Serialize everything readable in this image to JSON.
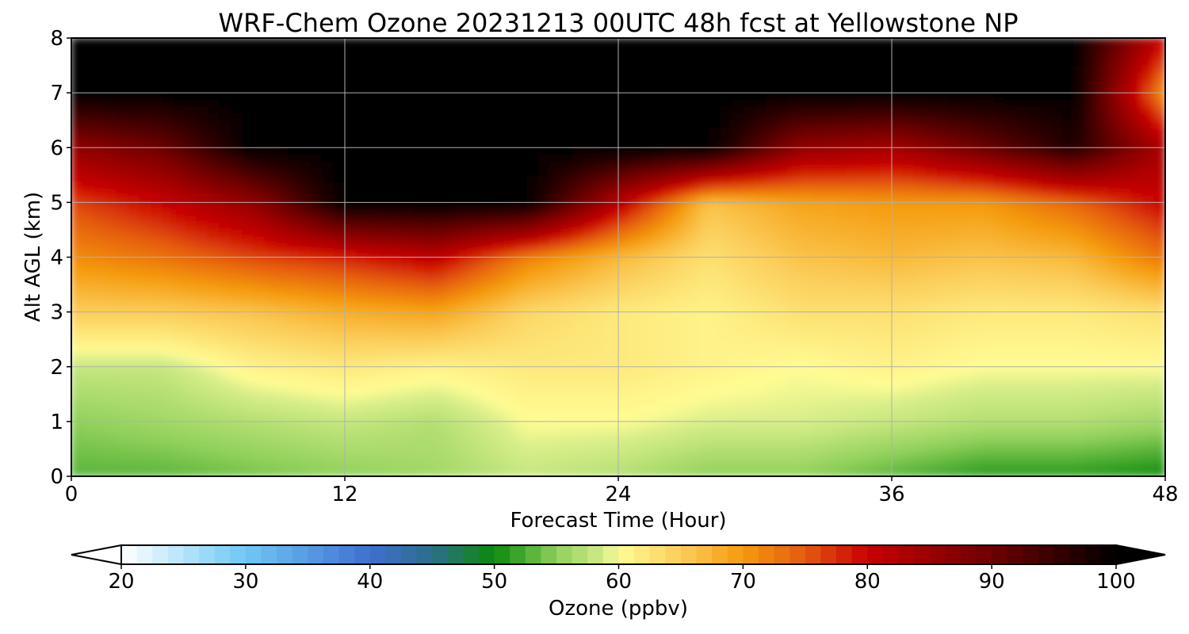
{
  "chart_data": {
    "type": "heatmap",
    "title": "WRF-Chem Ozone  20231213 00UTC 48h fcst at Yellowstone NP",
    "xlabel": "Forecast Time (Hour)",
    "ylabel": "Alt AGL (km)",
    "xlim": [
      0,
      48
    ],
    "ylim": [
      0,
      8
    ],
    "x_ticks": [
      0,
      12,
      24,
      36,
      48
    ],
    "y_ticks": [
      0,
      1,
      2,
      3,
      4,
      5,
      6,
      7,
      8
    ],
    "grid": true,
    "x": [
      0,
      4,
      8,
      12,
      16,
      20,
      24,
      28,
      32,
      36,
      40,
      44,
      48
    ],
    "y": [
      0,
      1,
      2,
      3,
      4,
      5,
      6,
      7,
      8
    ],
    "z_description": "Ozone (ppbv); rows are altitude levels y, columns are forecast hours x",
    "z": [
      [
        53,
        53,
        54,
        55,
        56,
        58,
        57,
        55,
        55,
        53,
        51,
        51,
        50
      ],
      [
        55,
        56,
        57,
        58,
        57,
        60,
        60,
        59,
        59,
        58,
        57,
        57,
        56
      ],
      [
        58,
        58,
        61,
        62,
        61,
        62,
        62,
        61,
        60,
        61,
        60,
        60,
        60
      ],
      [
        65,
        65,
        66,
        68,
        69,
        64,
        62,
        61,
        63,
        63,
        62,
        62,
        63
      ],
      [
        71,
        73,
        76,
        78,
        81,
        72,
        67,
        63,
        66,
        67,
        66,
        67,
        73
      ],
      [
        76,
        80,
        86,
        100,
        100,
        100,
        82,
        66,
        69,
        70,
        70,
        74,
        80
      ],
      [
        86,
        90,
        100,
        100,
        100,
        100,
        100,
        100,
        86,
        84,
        90,
        97,
        83
      ],
      [
        100,
        100,
        100,
        100,
        100,
        100,
        100,
        100,
        100,
        100,
        100,
        100,
        70
      ],
      [
        100,
        100,
        100,
        100,
        100,
        100,
        100,
        100,
        100,
        100,
        100,
        100,
        80
      ]
    ],
    "colorbar": {
      "label": "Ozone  (ppbv)",
      "min": 20,
      "max": 100,
      "ticks": [
        20,
        30,
        40,
        50,
        60,
        70,
        80,
        90,
        100
      ],
      "extend": "both",
      "orientation": "horizontal",
      "color_stops": [
        {
          "value": 20,
          "color": "#ffffff"
        },
        {
          "value": 30,
          "color": "#6ec8f5"
        },
        {
          "value": 40,
          "color": "#3f6fd0"
        },
        {
          "value": 45,
          "color": "#2d6e8a"
        },
        {
          "value": 50,
          "color": "#0a8a0a"
        },
        {
          "value": 55,
          "color": "#8fd05a"
        },
        {
          "value": 59,
          "color": "#d8ee8a"
        },
        {
          "value": 60,
          "color": "#fffc94"
        },
        {
          "value": 65,
          "color": "#fbcd5a"
        },
        {
          "value": 70,
          "color": "#f59a0c"
        },
        {
          "value": 75,
          "color": "#e45a10"
        },
        {
          "value": 80,
          "color": "#c80000"
        },
        {
          "value": 90,
          "color": "#6e0000"
        },
        {
          "value": 100,
          "color": "#000000"
        }
      ]
    }
  }
}
